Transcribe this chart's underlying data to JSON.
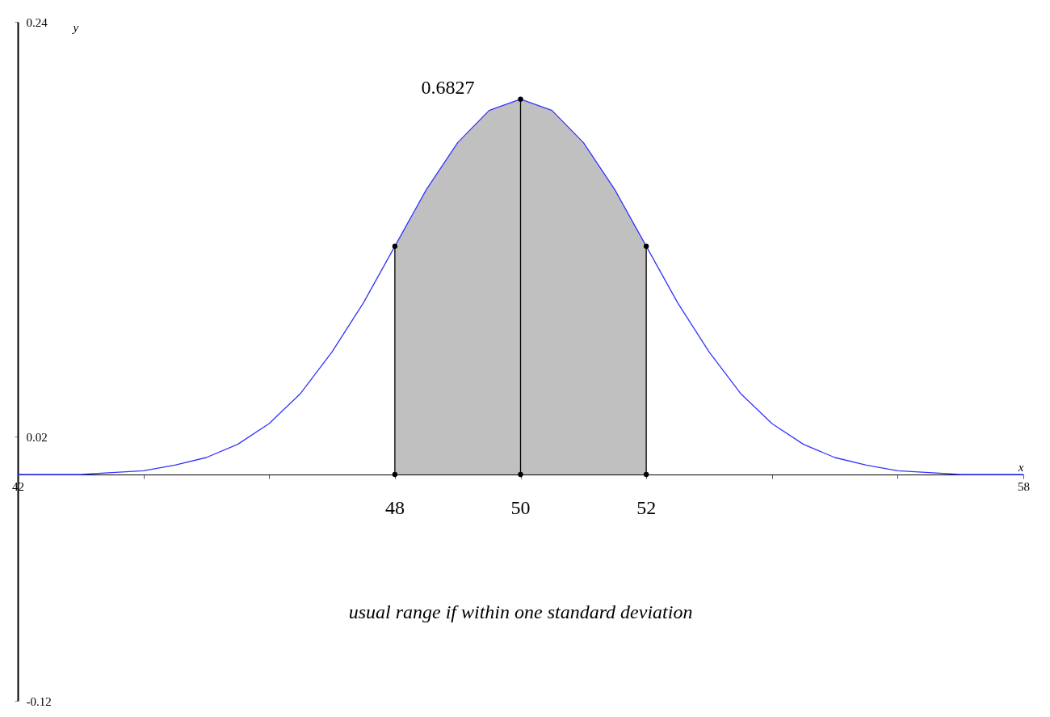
{
  "chart_data": {
    "type": "line",
    "xlabel": "x",
    "ylabel": "y",
    "xlim": [
      42,
      58
    ],
    "ylim": [
      -0.12,
      0.24
    ],
    "xticks": [
      42,
      {
        "value": 44,
        "label": null
      },
      {
        "value": 46,
        "label": null
      },
      {
        "value": 48,
        "label": null
      },
      {
        "value": 50,
        "label": null
      },
      {
        "value": 52,
        "label": null
      },
      {
        "value": 54,
        "label": null
      },
      {
        "value": 56,
        "label": null
      },
      58
    ],
    "yticks": [
      -0.12,
      0.02,
      0.24
    ],
    "grid": false,
    "series": [
      {
        "type": "area",
        "color": "#c0c0c0",
        "x": [
          48,
          48.5,
          49,
          49.5,
          50,
          50.5,
          51,
          51.5,
          52
        ],
        "values": [
          0.121,
          0.151,
          0.176,
          0.193,
          0.199,
          0.193,
          0.176,
          0.151,
          0.121
        ]
      },
      {
        "color": "#3333ff",
        "marker": "none",
        "x": [
          42,
          42.5,
          43,
          43.5,
          44,
          44.5,
          45,
          45.5,
          46,
          46.5,
          47,
          47.5,
          48,
          48.5,
          49,
          49.5,
          50,
          50.5,
          51,
          51.5,
          52,
          52.5,
          53,
          53.5,
          54,
          54.5,
          55,
          55.5,
          56,
          56.5,
          57,
          57.5,
          58
        ],
        "values": [
          0.0,
          0.0,
          0.0,
          0.001,
          0.002,
          0.005,
          0.009,
          0.016,
          0.027,
          0.043,
          0.065,
          0.091,
          0.121,
          0.151,
          0.176,
          0.193,
          0.199,
          0.193,
          0.176,
          0.151,
          0.121,
          0.091,
          0.065,
          0.043,
          0.027,
          0.016,
          0.009,
          0.005,
          0.002,
          0.001,
          0.0,
          0.0,
          0.0
        ]
      },
      {
        "type": "line",
        "color": "#000000",
        "marker": "circle",
        "x": [
          48,
          48
        ],
        "values": [
          0,
          0.121
        ]
      },
      {
        "type": "line",
        "color": "#000000",
        "marker": "circle",
        "x": [
          50,
          50
        ],
        "values": [
          0,
          0.199
        ]
      },
      {
        "type": "line",
        "color": "#000000",
        "marker": "circle",
        "x": [
          52,
          52
        ],
        "values": [
          0,
          0.121
        ]
      }
    ],
    "annotations": [
      {
        "text": "0.6827",
        "x": 50,
        "y": 0.199
      },
      {
        "text": "48",
        "x": 48,
        "y": 0
      },
      {
        "text": "50",
        "x": 50,
        "y": 0
      },
      {
        "text": "52",
        "x": 52,
        "y": 0
      },
      "usual range if within one standard deviation"
    ]
  }
}
